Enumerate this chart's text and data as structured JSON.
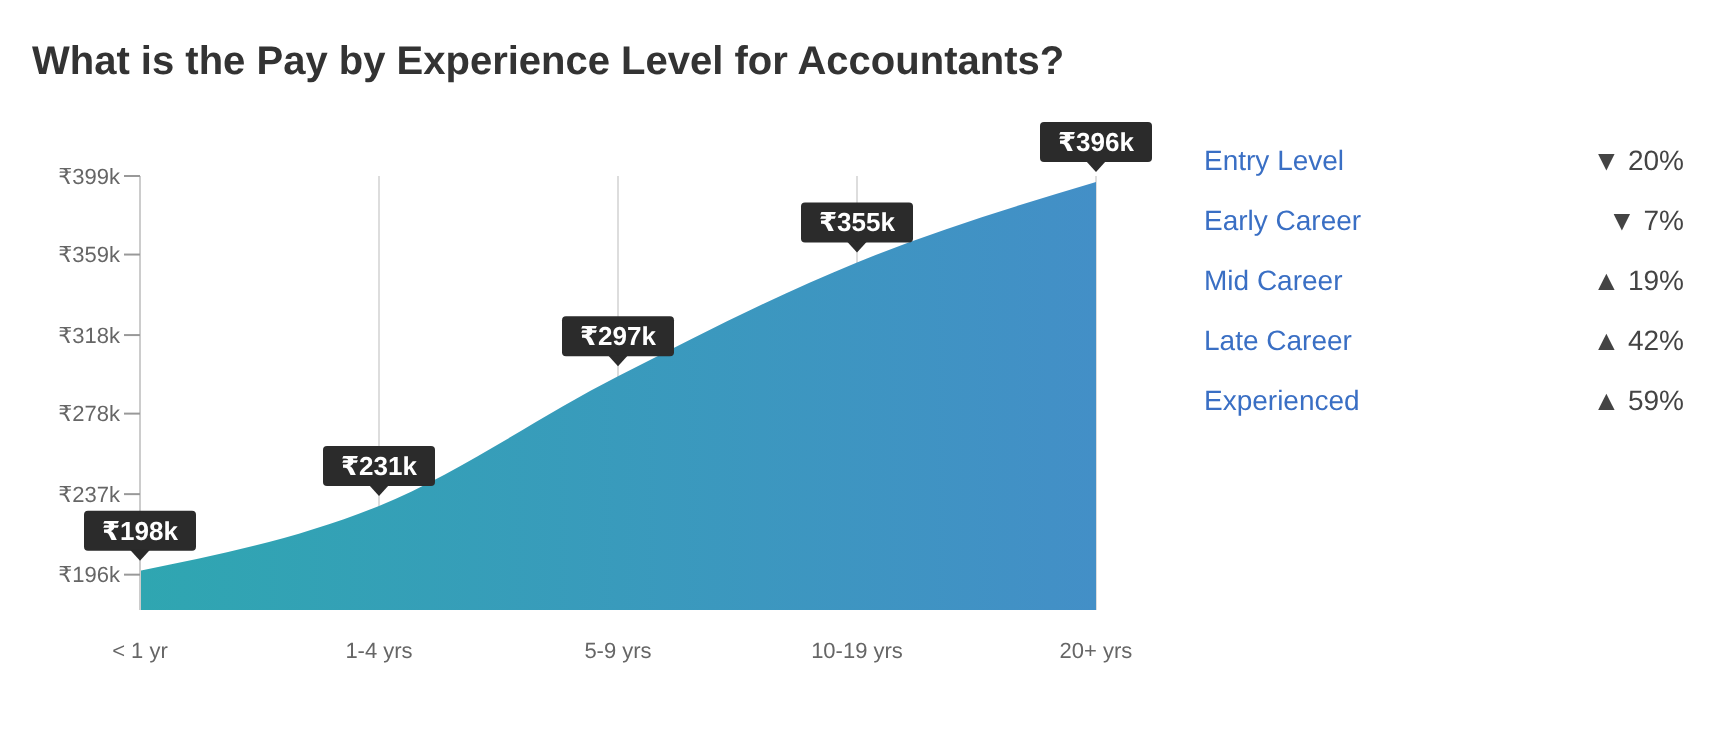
{
  "chart_data": {
    "type": "area",
    "title": "What is the Pay by Experience Level for Accountants?",
    "categories": [
      "< 1 yr",
      "1-4 yrs",
      "5-9 yrs",
      "10-19 yrs",
      "20+ yrs"
    ],
    "series": [
      {
        "color": "#4a9ab8",
        "values": [
          198,
          231,
          297,
          355,
          396
        ],
        "value_labels": [
          "₹198k",
          "₹231k",
          "₹297k",
          "₹355k",
          "₹396k"
        ]
      }
    ],
    "ylim": [
      178,
      399
    ],
    "yticks": [
      {
        "value": 196,
        "label": "₹196k"
      },
      {
        "value": 237,
        "label": "₹237k"
      },
      {
        "value": 278,
        "label": "₹278k"
      },
      {
        "value": 318,
        "label": "₹318k"
      },
      {
        "value": 359,
        "label": "₹359k"
      },
      {
        "value": 399,
        "label": "₹399k"
      }
    ],
    "grid": "x",
    "annotations": [
      "Entry Level",
      "▼ 20%",
      "Early Career",
      "▼ 7%",
      "Mid Career",
      "▲ 19%",
      "Late Career",
      "▲ 42%",
      "Experienced",
      "▲ 59%"
    ]
  }
}
